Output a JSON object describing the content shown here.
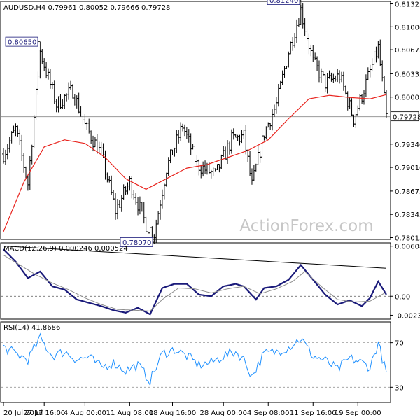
{
  "chart_data": [
    {
      "type": "candlestick",
      "header": "AUDUSD,H4  0.79961 0.80052 0.79666 0.79728",
      "last_price": "0.79728",
      "price_axis": {
        "ylim": [
          0.78,
          0.8135
        ],
        "ticks": [
          "0.81325",
          "0.81000",
          "0.80675",
          "0.80335",
          "0.80005",
          "0.79340",
          "0.79010",
          "0.78675",
          "0.78345",
          "0.78015"
        ]
      },
      "annotations": [
        {
          "label": "0.80650",
          "value": 0.8065
        },
        {
          "label": "0.81240",
          "value": 0.8124
        },
        {
          "label": "0.78070",
          "value": 0.7807
        }
      ],
      "overlay": {
        "name": "SMA",
        "color": "#e8231d"
      },
      "watermark": "ActionForex.com",
      "series_summary": {
        "points": [
          [
            0,
            0.792
          ],
          [
            6,
            0.7955
          ],
          [
            12,
            0.7878
          ],
          [
            18,
            0.8065
          ],
          [
            26,
            0.799
          ],
          [
            34,
            0.801
          ],
          [
            40,
            0.796
          ],
          [
            48,
            0.792
          ],
          [
            55,
            0.784
          ],
          [
            62,
            0.788
          ],
          [
            70,
            0.782
          ],
          [
            74,
            0.7807
          ],
          [
            80,
            0.79
          ],
          [
            88,
            0.796
          ],
          [
            95,
            0.7905
          ],
          [
            104,
            0.789
          ],
          [
            112,
            0.794
          ],
          [
            118,
            0.7945
          ],
          [
            122,
            0.7875
          ],
          [
            128,
            0.795
          ],
          [
            134,
            0.799
          ],
          [
            140,
            0.8065
          ],
          [
            146,
            0.8124
          ],
          [
            152,
            0.805
          ],
          [
            158,
            0.802
          ],
          [
            165,
            0.803
          ],
          [
            172,
            0.797
          ],
          [
            178,
            0.802
          ],
          [
            184,
            0.807
          ],
          [
            188,
            0.7972
          ]
        ],
        "sma": [
          [
            0,
            0.781
          ],
          [
            10,
            0.788
          ],
          [
            20,
            0.793
          ],
          [
            30,
            0.794
          ],
          [
            40,
            0.7935
          ],
          [
            50,
            0.7915
          ],
          [
            60,
            0.7885
          ],
          [
            70,
            0.787
          ],
          [
            80,
            0.7885
          ],
          [
            90,
            0.79
          ],
          [
            100,
            0.7905
          ],
          [
            110,
            0.7915
          ],
          [
            120,
            0.7925
          ],
          [
            130,
            0.794
          ],
          [
            140,
            0.797
          ],
          [
            150,
            0.7998
          ],
          [
            160,
            0.8003
          ],
          [
            170,
            0.8
          ],
          [
            180,
            0.7998
          ],
          [
            188,
            0.8004
          ]
        ]
      }
    },
    {
      "type": "line",
      "label": "MACD(12,26,9) 0.000246 0.000524",
      "ylim": [
        -0.0027,
        0.0064
      ],
      "ticks": [
        "0.006086",
        "0.00",
        "-0.002313"
      ],
      "zero_line": true,
      "trendline": [
        [
          0,
          0.0061
        ],
        [
          188,
          0.0034
        ]
      ],
      "series": [
        {
          "name": "MACD",
          "color": "#1a1a7a",
          "points": [
            [
              0,
              0.0057
            ],
            [
              6,
              0.0042
            ],
            [
              12,
              0.0022
            ],
            [
              18,
              0.003
            ],
            [
              24,
              0.0012
            ],
            [
              30,
              0.0008
            ],
            [
              36,
              -0.0004
            ],
            [
              42,
              -0.0008
            ],
            [
              48,
              -0.0012
            ],
            [
              54,
              -0.0017
            ],
            [
              60,
              -0.002
            ],
            [
              66,
              -0.0014
            ],
            [
              72,
              -0.0022
            ],
            [
              78,
              0.001
            ],
            [
              84,
              0.0015
            ],
            [
              90,
              0.0015
            ],
            [
              96,
              0.0002
            ],
            [
              102,
              0.0
            ],
            [
              108,
              0.0012
            ],
            [
              114,
              0.0015
            ],
            [
              118,
              0.0012
            ],
            [
              124,
              -0.0004
            ],
            [
              128,
              0.001
            ],
            [
              134,
              0.0012
            ],
            [
              140,
              0.002
            ],
            [
              146,
              0.0038
            ],
            [
              152,
              0.002
            ],
            [
              158,
              0.0002
            ],
            [
              164,
              -0.001
            ],
            [
              170,
              -0.0005
            ],
            [
              176,
              -0.0012
            ],
            [
              180,
              -0.0002
            ],
            [
              184,
              0.0018
            ],
            [
              188,
              0.0002
            ]
          ]
        },
        {
          "name": "Signal",
          "color": "#8d8d8d",
          "points": [
            [
              0,
              0.005
            ],
            [
              8,
              0.0038
            ],
            [
              16,
              0.0026
            ],
            [
              24,
              0.0016
            ],
            [
              32,
              0.0008
            ],
            [
              40,
              -0.0002
            ],
            [
              48,
              -0.001
            ],
            [
              56,
              -0.0016
            ],
            [
              64,
              -0.0017
            ],
            [
              72,
              -0.0018
            ],
            [
              78,
              -0.0004
            ],
            [
              86,
              0.001
            ],
            [
              94,
              0.0009
            ],
            [
              102,
              0.0004
            ],
            [
              110,
              0.0009
            ],
            [
              118,
              0.0012
            ],
            [
              126,
              0.0003
            ],
            [
              134,
              0.0009
            ],
            [
              142,
              0.0018
            ],
            [
              148,
              0.003
            ],
            [
              156,
              0.0012
            ],
            [
              164,
              -0.0004
            ],
            [
              172,
              -0.0007
            ],
            [
              180,
              -0.0006
            ],
            [
              188,
              0.0005
            ]
          ]
        }
      ]
    },
    {
      "type": "line",
      "label": "RSI(14) 41.8686",
      "ylim": [
        17,
        88
      ],
      "ticks": [
        "70",
        "30"
      ],
      "levels": [
        70,
        30
      ],
      "series": [
        {
          "name": "RSI",
          "color": "#1e90ff",
          "points": [
            [
              0,
              66
            ],
            [
              6,
              60
            ],
            [
              12,
              55
            ],
            [
              18,
              74
            ],
            [
              24,
              58
            ],
            [
              30,
              62
            ],
            [
              36,
              55
            ],
            [
              42,
              57
            ],
            [
              48,
              48
            ],
            [
              54,
              52
            ],
            [
              60,
              45
            ],
            [
              66,
              50
            ],
            [
              72,
              36
            ],
            [
              78,
              60
            ],
            [
              84,
              64
            ],
            [
              90,
              58
            ],
            [
              96,
              50
            ],
            [
              102,
              52
            ],
            [
              108,
              58
            ],
            [
              114,
              62
            ],
            [
              118,
              55
            ],
            [
              122,
              40
            ],
            [
              128,
              60
            ],
            [
              134,
              62
            ],
            [
              140,
              66
            ],
            [
              146,
              74
            ],
            [
              152,
              58
            ],
            [
              158,
              54
            ],
            [
              164,
              46
            ],
            [
              170,
              56
            ],
            [
              176,
              52
            ],
            [
              180,
              48
            ],
            [
              184,
              70
            ],
            [
              188,
              42
            ]
          ]
        }
      ]
    }
  ],
  "time_axis": {
    "labels": [
      {
        "text": "20 Jul 2017",
        "index": 0
      },
      {
        "text": "27 Jul 16:00",
        "index": 20
      },
      {
        "text": "4 Aug 00:00",
        "index": 40
      },
      {
        "text": "11 Aug 08:00",
        "index": 62
      },
      {
        "text": "18 Aug 16:00",
        "index": 83
      },
      {
        "text": "28 Aug 00:00",
        "index": 108
      },
      {
        "text": "4 Sep 08:00",
        "index": 130
      },
      {
        "text": "11 Sep 16:00",
        "index": 152
      },
      {
        "text": "19 Sep 00:00",
        "index": 174
      }
    ],
    "count": 189
  }
}
